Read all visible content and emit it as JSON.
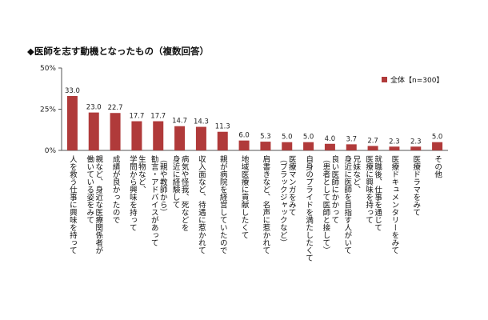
{
  "title": "◆医師を志す動機となったもの（複数回答）",
  "chart_data": {
    "type": "bar",
    "ylim": [
      0,
      50
    ],
    "yticks": [
      "0%",
      "25%",
      "50%"
    ],
    "legend": "全体【n=300】",
    "bar_color": "#b03a3a",
    "categories": [
      [
        "人を救う仕事に興味を持って"
      ],
      [
        "親など、身近な医療関係者が",
        "働いている姿をみて"
      ],
      [
        "成績が良かったので"
      ],
      [
        "生物など、",
        "学問から興味を持って"
      ],
      [
        "（親や教師から）",
        "勧言・アドバイスがあって"
      ],
      [
        "病気や怪我、死などを",
        "身近に経験して"
      ],
      [
        "収入面など、待遇に惹かれて"
      ],
      [
        "親が病院を経営していたので"
      ],
      [
        "地域医療に貢献したくて"
      ],
      [
        "肩書きなど、名声に惹かれて"
      ],
      [
        "医療マンガをみて",
        "（ブラックジャックなど）"
      ],
      [
        "自身のプライドを満たしたくて"
      ],
      [
        "良い医師にかかって",
        "（患者として医師と接して）"
      ],
      [
        "兄妹など、",
        "身近に医師を目指す人がいて"
      ],
      [
        "就職後、仕事を通じて",
        "医療に興味を持って"
      ],
      [
        "医療ドキュメンタリーをみて"
      ],
      [
        "医療ドラマをみて"
      ],
      [
        "その他"
      ]
    ],
    "values": [
      33.0,
      23.0,
      22.7,
      17.7,
      17.7,
      14.7,
      14.3,
      11.3,
      6.0,
      5.3,
      5.0,
      5.0,
      4.0,
      3.7,
      2.7,
      2.3,
      2.3,
      5.0
    ],
    "value_labels": [
      "33.0",
      "23.0",
      "22.7",
      "17.7",
      "17.7",
      "14.7",
      "14.3",
      "11.3",
      "6.0",
      "5.3",
      "5.0",
      "5.0",
      "4.0",
      "3.7",
      "2.7",
      "2.3",
      "2.3",
      "5.0"
    ]
  }
}
